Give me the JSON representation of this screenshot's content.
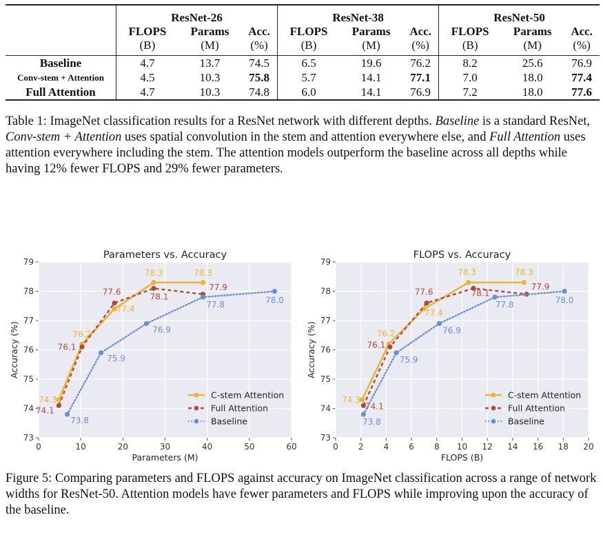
{
  "table": {
    "networks": [
      "ResNet-26",
      "ResNet-38",
      "ResNet-50"
    ],
    "columns": [
      {
        "name": "FLOPS",
        "unit": "(B)"
      },
      {
        "name": "Params",
        "unit": "(M)"
      },
      {
        "name": "Acc.",
        "unit": "(%)"
      }
    ],
    "rows": [
      {
        "label": "Baseline",
        "values": [
          "4.7",
          "13.7",
          "74.5",
          "6.5",
          "19.6",
          "76.2",
          "8.2",
          "25.6",
          "76.9"
        ]
      },
      {
        "label": "Conv-stem + Attention",
        "values": [
          "4.5",
          "10.3",
          "75.8",
          "5.7",
          "14.1",
          "77.1",
          "7.0",
          "18.0",
          "77.4"
        ]
      },
      {
        "label": "Full Attention",
        "values": [
          "4.7",
          "10.3",
          "74.8",
          "6.0",
          "14.1",
          "76.9",
          "7.2",
          "18.0",
          "77.6"
        ]
      }
    ]
  },
  "caption1": {
    "prefix": "Table 1: ImageNet classification results for a ResNet network with different depths.",
    "term1": "Baseline",
    "mid1": "is a standard ResNet,",
    "term2": "Conv-stem + Attention",
    "mid2": "uses spatial convolution in the stem and attention everywhere else, and",
    "term3": "Full Attention",
    "suffix": "uses attention everywhere including the stem. The attention models outperform the baseline across all depths while having 12% fewer FLOPS and 29% fewer parameters."
  },
  "caption2": "Figure 5: Comparing parameters and FLOPS against accuracy on ImageNet classification across a range of network widths for ResNet-50. Attention models have fewer parameters and FLOPS while improving upon the accuracy of the baseline.",
  "colors": {
    "cstem": "#e8b535",
    "full": "#b5473a",
    "baseline": "#6a8fd8",
    "plot_bg": "#eaeaf2"
  },
  "chart_data": [
    {
      "type": "line",
      "title": "Parameters vs. Accuracy",
      "xlabel": "Parameters (M)",
      "ylabel": "Accuracy (%)",
      "xlim": [
        0,
        60
      ],
      "ylim": [
        73,
        79
      ],
      "xticks": [
        "0",
        "10",
        "20",
        "30",
        "40",
        "50",
        "60"
      ],
      "yticks": [
        "73",
        "74",
        "75",
        "76",
        "77",
        "78",
        "79"
      ],
      "grid": true,
      "legend": "bottom-right",
      "series": [
        {
          "name": "C-stem Attention",
          "color": "#e8b535",
          "style": "solid",
          "x": [
            4.8,
            10.3,
            18.0,
            27.3,
            39.0
          ],
          "y": [
            74.3,
            76.2,
            77.4,
            78.3,
            78.3
          ],
          "labels": [
            "74.3",
            "76.2",
            "77.4",
            "78.3",
            "78.3"
          ]
        },
        {
          "name": "Full Attention",
          "color": "#b5473a",
          "style": "dashed",
          "x": [
            4.8,
            10.3,
            18.0,
            27.3,
            39.0
          ],
          "y": [
            74.1,
            76.1,
            77.6,
            78.1,
            77.9
          ],
          "labels": [
            "74.1",
            "76.1",
            "77.6",
            "78.1",
            "77.9"
          ]
        },
        {
          "name": "Baseline",
          "color": "#6a8fd8",
          "style": "dotted",
          "x": [
            6.8,
            14.8,
            25.6,
            39.0,
            56.0
          ],
          "y": [
            73.8,
            75.9,
            76.9,
            77.8,
            78.0
          ],
          "labels": [
            "73.8",
            "75.9",
            "76.9",
            "77.8",
            "78.0"
          ]
        }
      ]
    },
    {
      "type": "line",
      "title": "FLOPS vs. Accuracy",
      "xlabel": "FLOPS (B)",
      "ylabel": "Accuracy (%)",
      "xlim": [
        0,
        20
      ],
      "ylim": [
        73,
        79
      ],
      "xticks": [
        "0",
        "2",
        "4",
        "6",
        "8",
        "10",
        "12",
        "14",
        "16",
        "18",
        "20"
      ],
      "yticks": [
        "73",
        "74",
        "75",
        "76",
        "77",
        "78",
        "79"
      ],
      "grid": true,
      "legend": "bottom-right",
      "series": [
        {
          "name": "C-stem Attention",
          "color": "#e8b535",
          "style": "solid",
          "x": [
            2.1,
            4.2,
            7.0,
            10.5,
            14.9
          ],
          "y": [
            74.3,
            76.2,
            77.4,
            78.3,
            78.3
          ],
          "labels": [
            "74.3",
            "76.2",
            "77.4",
            "78.3",
            "78.3"
          ]
        },
        {
          "name": "Full Attention",
          "color": "#b5473a",
          "style": "dashed",
          "x": [
            2.2,
            4.3,
            7.2,
            10.9,
            15.1
          ],
          "y": [
            74.1,
            76.1,
            77.6,
            78.1,
            77.9
          ],
          "labels": [
            "74.1",
            "76.1",
            "77.6",
            "78.1",
            "77.9"
          ]
        },
        {
          "name": "Baseline",
          "color": "#6a8fd8",
          "style": "dotted",
          "x": [
            2.2,
            4.8,
            8.2,
            12.6,
            18.1
          ],
          "y": [
            73.8,
            75.9,
            76.9,
            77.8,
            78.0
          ],
          "labels": [
            "73.8",
            "75.9",
            "76.9",
            "77.8",
            "78.0"
          ]
        }
      ]
    }
  ]
}
